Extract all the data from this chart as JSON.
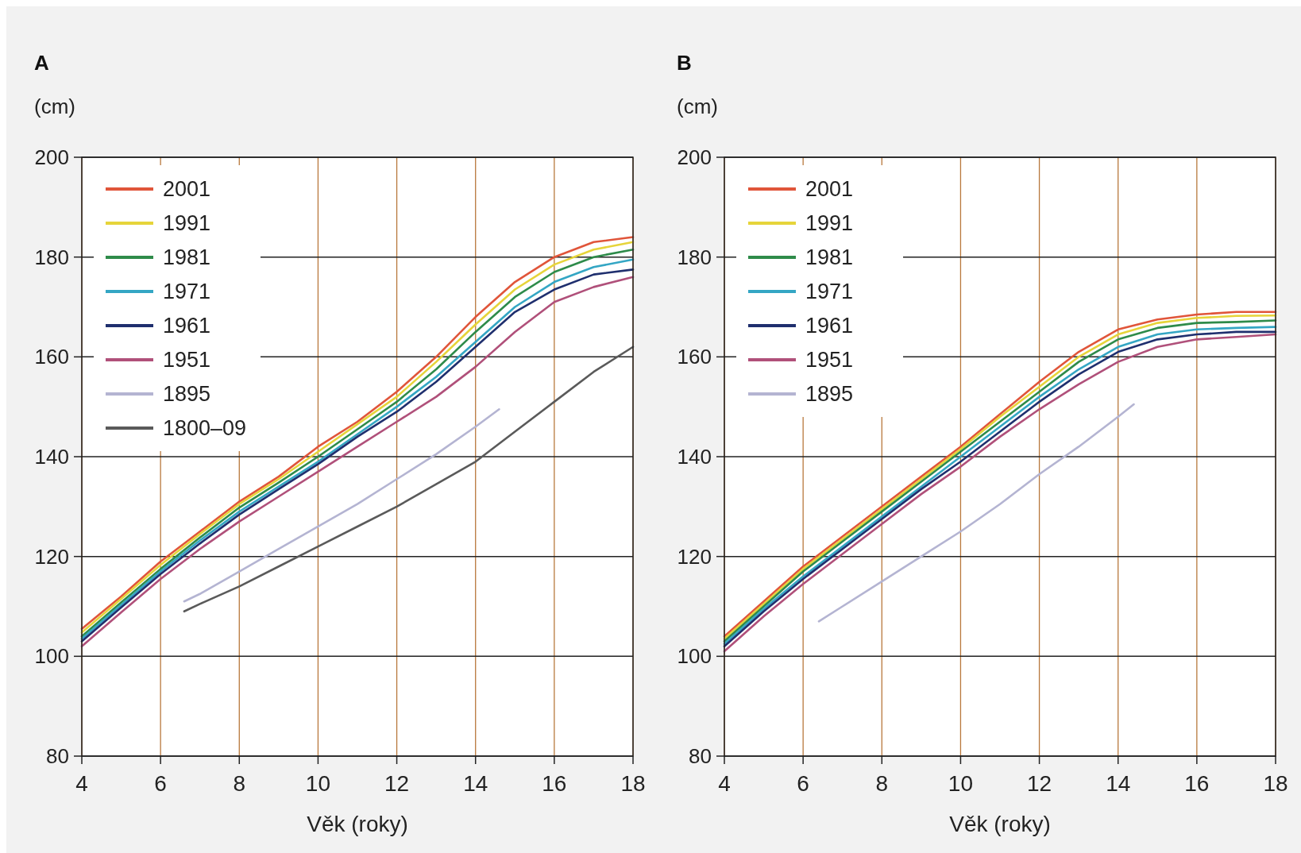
{
  "chart_data": [
    {
      "type": "line",
      "title": "A",
      "ylabel": "(cm)",
      "xlabel": "Věk (roky)",
      "x": [
        4,
        5,
        6,
        7,
        8,
        9,
        10,
        11,
        12,
        13,
        14,
        15,
        16,
        17,
        18
      ],
      "xlim": [
        4,
        18
      ],
      "xticks": [
        4,
        6,
        8,
        10,
        12,
        14,
        16,
        18
      ],
      "ylim": [
        80,
        200
      ],
      "yticks": [
        80,
        100,
        120,
        140,
        160,
        180,
        200
      ],
      "grid": true,
      "legend": "top left",
      "marker": "none",
      "line_style": "solid",
      "series": [
        {
          "name": "2001",
          "color": "#e0553a",
          "values": [
            105.5,
            112,
            119,
            125,
            131,
            136,
            142,
            147,
            153,
            160,
            168,
            175,
            180,
            183,
            184
          ]
        },
        {
          "name": "1991",
          "color": "#e6d43a",
          "values": [
            104.8,
            111.5,
            118.3,
            124.5,
            130.5,
            135.5,
            141,
            146.5,
            152,
            159,
            166.5,
            173.5,
            178.5,
            181.5,
            183
          ]
        },
        {
          "name": "1981",
          "color": "#2e8b4a",
          "values": [
            104,
            110.8,
            117.5,
            123.8,
            129.8,
            134.8,
            140,
            145.5,
            151,
            157.5,
            165,
            172,
            177,
            180,
            181.5
          ]
        },
        {
          "name": "1971",
          "color": "#34a6c4",
          "values": [
            103.5,
            110.3,
            117,
            123.2,
            129,
            134,
            139,
            144.5,
            150,
            156,
            163,
            170,
            175,
            178,
            179.5
          ]
        },
        {
          "name": "1961",
          "color": "#1f2f6e",
          "values": [
            103,
            109.8,
            116.5,
            122.6,
            128.4,
            133.5,
            138.5,
            144,
            149,
            155,
            162,
            169,
            173.5,
            176.5,
            177.5
          ]
        },
        {
          "name": "1951",
          "color": "#b0507a",
          "values": [
            102,
            108.8,
            115.5,
            121.5,
            127,
            132,
            137,
            142,
            147,
            152,
            158,
            165,
            171,
            174,
            176
          ]
        },
        {
          "name": "1895",
          "color": "#b4b4d2",
          "x": [
            6.6,
            7,
            8,
            9,
            10,
            11,
            12,
            13,
            14,
            14.6
          ],
          "values": [
            111,
            112.5,
            117,
            121.5,
            126,
            130.5,
            135.5,
            140.5,
            146,
            149.5
          ]
        },
        {
          "name": "1800–09",
          "color": "#5a5a5a",
          "x": [
            6.6,
            7,
            8,
            9,
            10,
            11,
            12,
            13,
            14,
            15,
            16,
            17,
            18
          ],
          "values": [
            109,
            110.5,
            114,
            118,
            122,
            126,
            130,
            134.5,
            139,
            145,
            151,
            157,
            162
          ]
        }
      ]
    },
    {
      "type": "line",
      "title": "B",
      "ylabel": "(cm)",
      "xlabel": "Věk (roky)",
      "x": [
        4,
        5,
        6,
        7,
        8,
        9,
        10,
        11,
        12,
        13,
        14,
        15,
        16,
        17,
        18
      ],
      "xlim": [
        4,
        18
      ],
      "xticks": [
        4,
        6,
        8,
        10,
        12,
        14,
        16,
        18
      ],
      "ylim": [
        80,
        200
      ],
      "yticks": [
        80,
        100,
        120,
        140,
        160,
        180,
        200
      ],
      "grid": true,
      "legend": "top left",
      "marker": "none",
      "line_style": "solid",
      "series": [
        {
          "name": "2001",
          "color": "#e0553a",
          "values": [
            104,
            111,
            118,
            124,
            130,
            136,
            142,
            148.5,
            155,
            161,
            165.5,
            167.5,
            168.5,
            169,
            169
          ]
        },
        {
          "name": "1991",
          "color": "#e6d43a",
          "values": [
            103.5,
            110.5,
            117.5,
            123.5,
            129.5,
            135.5,
            141.5,
            148,
            154,
            160,
            164.5,
            166.8,
            167.8,
            168.2,
            168.3
          ]
        },
        {
          "name": "1981",
          "color": "#2e8b4a",
          "values": [
            103,
            110,
            117,
            123,
            129,
            135,
            141,
            147,
            153,
            159,
            163.5,
            165.8,
            166.8,
            167,
            167.3
          ]
        },
        {
          "name": "1971",
          "color": "#34a6c4",
          "values": [
            102.5,
            109.5,
            116,
            122,
            128,
            134,
            140,
            146,
            152,
            157.5,
            162,
            164.5,
            165.5,
            165.8,
            166
          ]
        },
        {
          "name": "1961",
          "color": "#1f2f6e",
          "values": [
            102,
            109,
            115.5,
            121.5,
            127.5,
            133.5,
            139,
            145,
            151,
            156.5,
            161,
            163.5,
            164.5,
            165,
            165
          ]
        },
        {
          "name": "1951",
          "color": "#b0507a",
          "values": [
            101,
            108,
            114.5,
            120.5,
            126.5,
            132.5,
            138,
            144,
            149.5,
            154.5,
            159,
            162,
            163.5,
            164,
            164.5
          ]
        },
        {
          "name": "1895",
          "color": "#b4b4d2",
          "x": [
            6.4,
            7,
            8,
            9,
            10,
            11,
            12,
            13,
            14,
            14.4
          ],
          "values": [
            107,
            110,
            115,
            120,
            125,
            130.5,
            136.5,
            142,
            148,
            150.5
          ]
        }
      ]
    }
  ]
}
